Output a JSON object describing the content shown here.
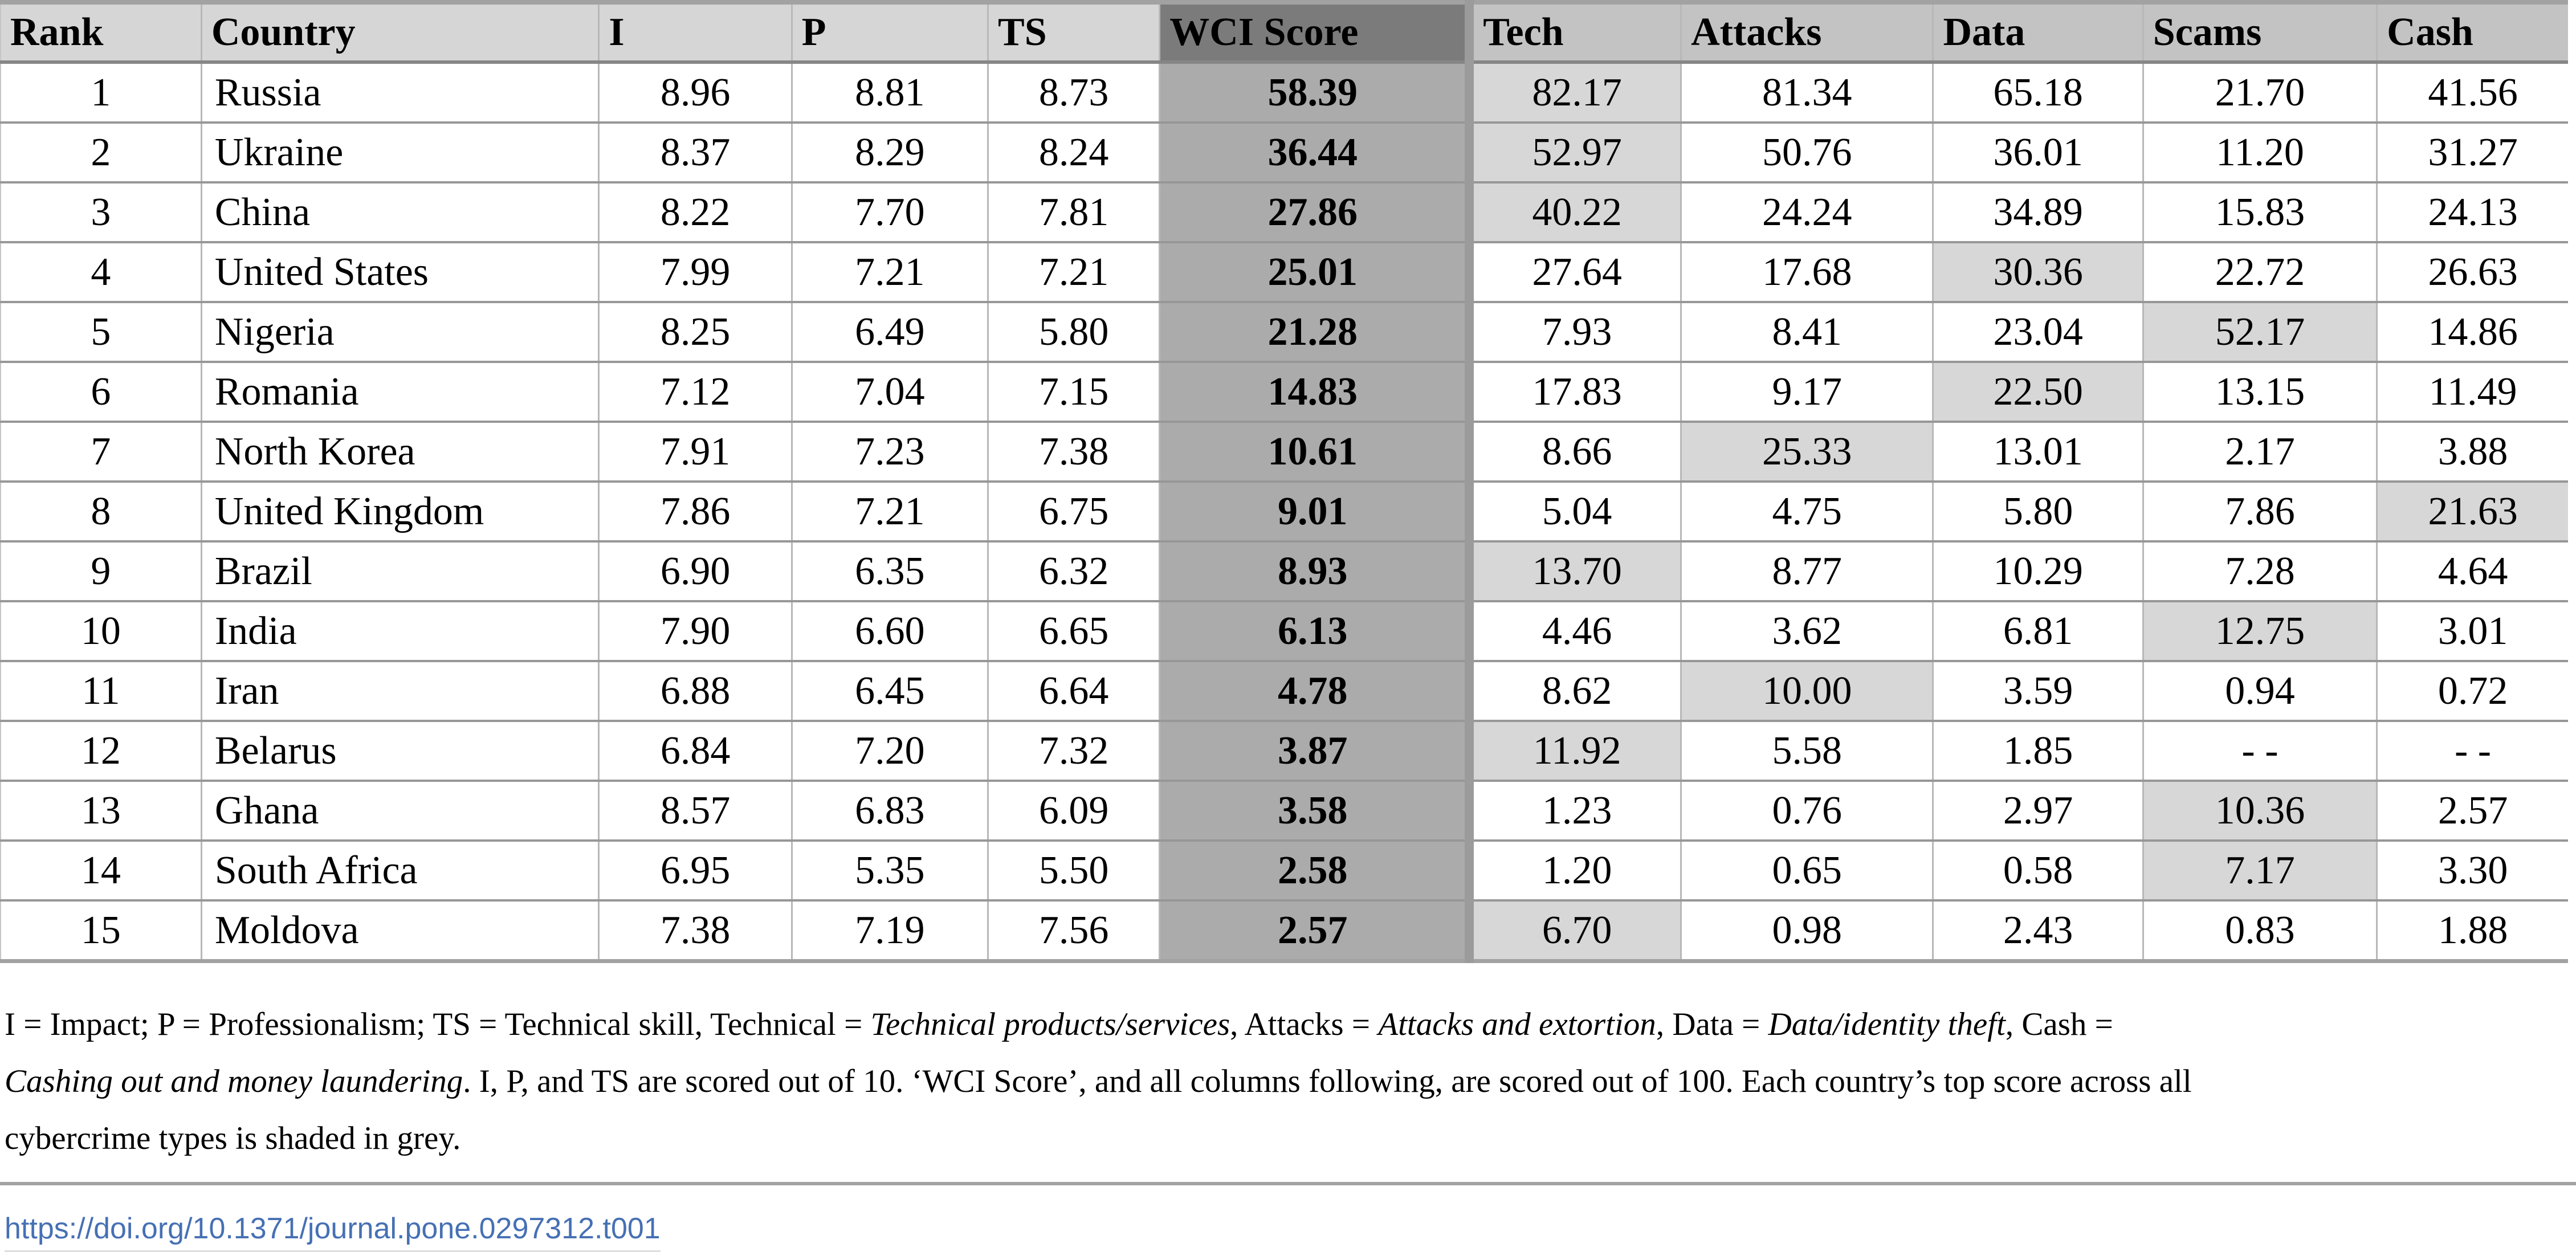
{
  "table": {
    "columns": [
      "Rank",
      "Country",
      "I",
      "P",
      "TS",
      "WCI Score",
      "Tech",
      "Attacks",
      "Data",
      "Scams",
      "Cash"
    ],
    "col_keys": [
      "rank",
      "country",
      "i",
      "p",
      "ts",
      "wci",
      "tech",
      "attacks",
      "data",
      "scams",
      "cash"
    ],
    "rows": [
      {
        "rank": "1",
        "country": "Russia",
        "i": "8.96",
        "p": "8.81",
        "ts": "8.73",
        "wci": "58.39",
        "tech": "82.17",
        "attacks": "81.34",
        "data": "65.18",
        "scams": "21.70",
        "cash": "41.56",
        "top": "tech"
      },
      {
        "rank": "2",
        "country": "Ukraine",
        "i": "8.37",
        "p": "8.29",
        "ts": "8.24",
        "wci": "36.44",
        "tech": "52.97",
        "attacks": "50.76",
        "data": "36.01",
        "scams": "11.20",
        "cash": "31.27",
        "top": "tech"
      },
      {
        "rank": "3",
        "country": "China",
        "i": "8.22",
        "p": "7.70",
        "ts": "7.81",
        "wci": "27.86",
        "tech": "40.22",
        "attacks": "24.24",
        "data": "34.89",
        "scams": "15.83",
        "cash": "24.13",
        "top": "tech"
      },
      {
        "rank": "4",
        "country": "United States",
        "i": "7.99",
        "p": "7.21",
        "ts": "7.21",
        "wci": "25.01",
        "tech": "27.64",
        "attacks": "17.68",
        "data": "30.36",
        "scams": "22.72",
        "cash": "26.63",
        "top": "data"
      },
      {
        "rank": "5",
        "country": "Nigeria",
        "i": "8.25",
        "p": "6.49",
        "ts": "5.80",
        "wci": "21.28",
        "tech": "7.93",
        "attacks": "8.41",
        "data": "23.04",
        "scams": "52.17",
        "cash": "14.86",
        "top": "scams"
      },
      {
        "rank": "6",
        "country": "Romania",
        "i": "7.12",
        "p": "7.04",
        "ts": "7.15",
        "wci": "14.83",
        "tech": "17.83",
        "attacks": "9.17",
        "data": "22.50",
        "scams": "13.15",
        "cash": "11.49",
        "top": "data"
      },
      {
        "rank": "7",
        "country": "North Korea",
        "i": "7.91",
        "p": "7.23",
        "ts": "7.38",
        "wci": "10.61",
        "tech": "8.66",
        "attacks": "25.33",
        "data": "13.01",
        "scams": "2.17",
        "cash": "3.88",
        "top": "attacks"
      },
      {
        "rank": "8",
        "country": "United Kingdom",
        "i": "7.86",
        "p": "7.21",
        "ts": "6.75",
        "wci": "9.01",
        "tech": "5.04",
        "attacks": "4.75",
        "data": "5.80",
        "scams": "7.86",
        "cash": "21.63",
        "top": "cash"
      },
      {
        "rank": "9",
        "country": "Brazil",
        "i": "6.90",
        "p": "6.35",
        "ts": "6.32",
        "wci": "8.93",
        "tech": "13.70",
        "attacks": "8.77",
        "data": "10.29",
        "scams": "7.28",
        "cash": "4.64",
        "top": "tech"
      },
      {
        "rank": "10",
        "country": "India",
        "i": "7.90",
        "p": "6.60",
        "ts": "6.65",
        "wci": "6.13",
        "tech": "4.46",
        "attacks": "3.62",
        "data": "6.81",
        "scams": "12.75",
        "cash": "3.01",
        "top": "scams"
      },
      {
        "rank": "11",
        "country": "Iran",
        "i": "6.88",
        "p": "6.45",
        "ts": "6.64",
        "wci": "4.78",
        "tech": "8.62",
        "attacks": "10.00",
        "data": "3.59",
        "scams": "0.94",
        "cash": "0.72",
        "top": "attacks"
      },
      {
        "rank": "12",
        "country": "Belarus",
        "i": "6.84",
        "p": "7.20",
        "ts": "7.32",
        "wci": "3.87",
        "tech": "11.92",
        "attacks": "5.58",
        "data": "1.85",
        "scams": "- -",
        "cash": "- -",
        "top": "tech"
      },
      {
        "rank": "13",
        "country": "Ghana",
        "i": "8.57",
        "p": "6.83",
        "ts": "6.09",
        "wci": "3.58",
        "tech": "1.23",
        "attacks": "0.76",
        "data": "2.97",
        "scams": "10.36",
        "cash": "2.57",
        "top": "scams"
      },
      {
        "rank": "14",
        "country": "South Africa",
        "i": "6.95",
        "p": "5.35",
        "ts": "5.50",
        "wci": "2.58",
        "tech": "1.20",
        "attacks": "0.65",
        "data": "0.58",
        "scams": "7.17",
        "cash": "3.30",
        "top": "scams"
      },
      {
        "rank": "15",
        "country": "Moldova",
        "i": "7.38",
        "p": "7.19",
        "ts": "7.56",
        "wci": "2.57",
        "tech": "6.70",
        "attacks": "0.98",
        "data": "2.43",
        "scams": "0.83",
        "cash": "1.88",
        "top": "tech"
      }
    ]
  },
  "footnote": {
    "runs": {
      "r1": "I = Impact; P = Professionalism; TS = Technical skill, Technical = ",
      "r2": "Technical products/services",
      "r3": ", Attacks = ",
      "r4": "Attacks and extortion",
      "r5": ", Data = ",
      "r6": "Data/identity theft",
      "r7": ", Cash = ",
      "r8": "Cashing out and money laundering",
      "r9": ". I, P, and TS are scored out of 10. ‘WCI Score’, and all columns following, are scored out of 100. Each country’s top score across all",
      "r10": "cybercrime types is shaded in grey."
    }
  },
  "doi": "https://doi.org/10.1371/journal.pone.0297312.t001",
  "colors": {
    "header_light": "#d6d6d6",
    "header_medium": "#c3c3c3",
    "wci_header": "#7b7b7b",
    "wci_cell": "#ababab",
    "shaded_cell": "#d7d7d7",
    "separator": "#979797",
    "band": "#a2a2a2",
    "band2": "#9b9b9b",
    "link_blue": "#4670b4"
  }
}
